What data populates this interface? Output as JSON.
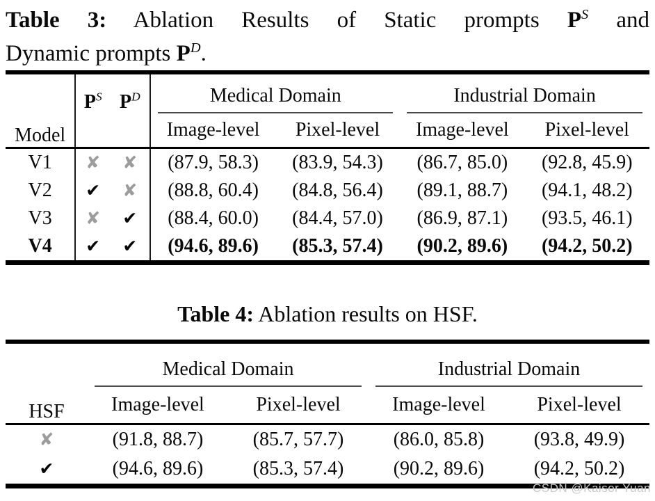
{
  "colors": {
    "background": "#ffffff",
    "text": "#0a0a0a",
    "check": "#050505",
    "cross": "#9c9c9c",
    "rule": "#000000",
    "cmidrule": "#4a4a4a",
    "watermark": "#c9c9c9"
  },
  "table3": {
    "caption": {
      "label": "Table 3:",
      "line1_text": "Ablation Results of Static prompts",
      "ps_base": "P",
      "ps_sup": "S",
      "line1_end": "and",
      "line2_text": "Dynamic prompts",
      "pd_base": "P",
      "pd_sup": "D",
      "line2_end": "."
    },
    "header": {
      "model": "Model",
      "ps_base": "P",
      "ps_sup": "S",
      "pd_base": "P",
      "pd_sup": "D",
      "groups": [
        "Medical Domain",
        "Industrial Domain"
      ],
      "subheaders": [
        "Image-level",
        "Pixel-level",
        "Image-level",
        "Pixel-level"
      ]
    },
    "rows": [
      {
        "model": "V1",
        "weight": "normal",
        "ps": {
          "glyph": "✘",
          "variant": "cross"
        },
        "pd": {
          "glyph": "✘",
          "variant": "cross"
        },
        "cells": [
          "(87.9, 58.3)",
          "(83.9, 54.3)",
          "(86.7, 85.0)",
          "(92.8, 45.9)"
        ]
      },
      {
        "model": "V2",
        "weight": "normal",
        "ps": {
          "glyph": "✔",
          "variant": "check"
        },
        "pd": {
          "glyph": "✘",
          "variant": "cross"
        },
        "cells": [
          "(88.8, 60.4)",
          "(84.8, 56.4)",
          "(89.1, 88.7)",
          "(94.1, 48.2)"
        ]
      },
      {
        "model": "V3",
        "weight": "normal",
        "ps": {
          "glyph": "✘",
          "variant": "cross"
        },
        "pd": {
          "glyph": "✔",
          "variant": "check"
        },
        "cells": [
          "(88.4, 60.0)",
          "(84.4, 57.0)",
          "(86.9, 87.1)",
          "(93.5, 46.1)"
        ]
      },
      {
        "model": "V4",
        "weight": "bold",
        "ps": {
          "glyph": "✔",
          "variant": "check"
        },
        "pd": {
          "glyph": "✔",
          "variant": "check"
        },
        "cells": [
          "(94.6, 89.6)",
          "(85.3, 57.4)",
          "(90.2, 89.6)",
          "(94.2, 50.2)"
        ]
      }
    ]
  },
  "table4": {
    "caption": {
      "label": "Table 4:",
      "text": "Ablation results on HSF."
    },
    "header": {
      "hsf": "HSF",
      "groups": [
        "Medical Domain",
        "Industrial Domain"
      ],
      "subheaders": [
        "Image-level",
        "Pixel-level",
        "Image-level",
        "Pixel-level"
      ]
    },
    "rows": [
      {
        "weight": "normal",
        "hsf": {
          "glyph": "✘",
          "variant": "cross"
        },
        "cells": [
          "(91.8, 88.7)",
          "(85.7, 57.7)",
          "(86.0, 85.8)",
          "(93.8, 49.9)"
        ]
      },
      {
        "weight": "normal",
        "hsf": {
          "glyph": "✔",
          "variant": "check"
        },
        "cells": [
          "(94.6, 89.6)",
          "(85.3, 57.4)",
          "(90.2, 89.6)",
          "(94.2, 50.2)"
        ]
      }
    ]
  },
  "watermark": "CSDN @Kaisor Yuan"
}
